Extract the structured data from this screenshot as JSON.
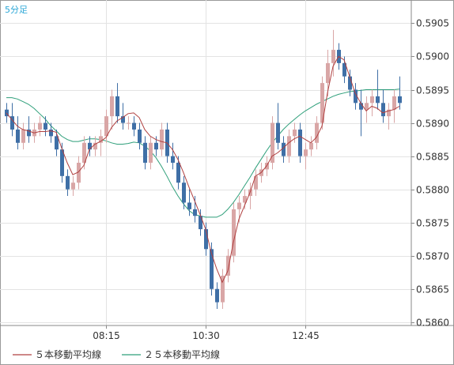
{
  "chart_data": {
    "type": "candlestick",
    "timeframe_label": "5分足",
    "x_tick_labels": [
      "08:15",
      "10:30",
      "12:45"
    ],
    "ylim": [
      0.58595,
      0.59085
    ],
    "y_ticks": [
      "0.5905",
      "0.5900",
      "0.5895",
      "0.5890",
      "0.5885",
      "0.5880",
      "0.5875",
      "0.5870",
      "0.5865",
      "0.5860"
    ],
    "grid": true,
    "legend_position": "bottom",
    "legend": [
      {
        "label": "５本移動平均線",
        "color": "#b04040"
      },
      {
        "label": "２５本移動平均線",
        "color": "#2e9f7a"
      }
    ],
    "up_color": "#d9a6a6",
    "down_color": "#3f6fa6",
    "candles": [
      [
        0.5892,
        0.5893,
        0.589,
        0.5891
      ],
      [
        0.5891,
        0.5893,
        0.5888,
        0.5889
      ],
      [
        0.5889,
        0.5891,
        0.5886,
        0.5887
      ],
      [
        0.5887,
        0.589,
        0.5886,
        0.5889
      ],
      [
        0.5889,
        0.5891,
        0.5887,
        0.5888
      ],
      [
        0.5888,
        0.589,
        0.5887,
        0.5889
      ],
      [
        0.5889,
        0.5891,
        0.5888,
        0.589
      ],
      [
        0.589,
        0.5891,
        0.5888,
        0.5889
      ],
      [
        0.5889,
        0.589,
        0.5887,
        0.5888
      ],
      [
        0.5888,
        0.5889,
        0.5885,
        0.5886
      ],
      [
        0.5886,
        0.5887,
        0.5881,
        0.5882
      ],
      [
        0.5882,
        0.5883,
        0.5879,
        0.588
      ],
      [
        0.588,
        0.5882,
        0.5879,
        0.5881
      ],
      [
        0.5881,
        0.5885,
        0.588,
        0.5884
      ],
      [
        0.5884,
        0.5888,
        0.5883,
        0.5887
      ],
      [
        0.5887,
        0.5888,
        0.5885,
        0.5886
      ],
      [
        0.5886,
        0.5888,
        0.5885,
        0.5887
      ],
      [
        0.5887,
        0.5889,
        0.5885,
        0.5888
      ],
      [
        0.5888,
        0.5892,
        0.5887,
        0.5891
      ],
      [
        0.5891,
        0.5895,
        0.5889,
        0.5894
      ],
      [
        0.5894,
        0.5896,
        0.589,
        0.5891
      ],
      [
        0.5891,
        0.5893,
        0.5889,
        0.589
      ],
      [
        0.589,
        0.5891,
        0.5889,
        0.589
      ],
      [
        0.589,
        0.5891,
        0.5888,
        0.5889
      ],
      [
        0.5889,
        0.589,
        0.5886,
        0.5887
      ],
      [
        0.5887,
        0.5888,
        0.5883,
        0.5884
      ],
      [
        0.5884,
        0.5888,
        0.5883,
        0.5887
      ],
      [
        0.5887,
        0.5888,
        0.5885,
        0.5886
      ],
      [
        0.5886,
        0.589,
        0.5885,
        0.5889
      ],
      [
        0.5889,
        0.589,
        0.5884,
        0.5885
      ],
      [
        0.5885,
        0.5887,
        0.5883,
        0.5884
      ],
      [
        0.5884,
        0.5885,
        0.588,
        0.5881
      ],
      [
        0.5881,
        0.5882,
        0.5877,
        0.5878
      ],
      [
        0.5878,
        0.588,
        0.5876,
        0.5877
      ],
      [
        0.5877,
        0.5879,
        0.5875,
        0.5876
      ],
      [
        0.5876,
        0.5877,
        0.5873,
        0.5874
      ],
      [
        0.5874,
        0.5875,
        0.587,
        0.5871
      ],
      [
        0.5871,
        0.5872,
        0.5864,
        0.5865
      ],
      [
        0.5865,
        0.5866,
        0.5862,
        0.5863
      ],
      [
        0.5863,
        0.5868,
        0.5862,
        0.5867
      ],
      [
        0.5867,
        0.5871,
        0.5866,
        0.587
      ],
      [
        0.587,
        0.5878,
        0.5869,
        0.5877
      ],
      [
        0.5877,
        0.5879,
        0.5875,
        0.5878
      ],
      [
        0.5878,
        0.588,
        0.5877,
        0.5879
      ],
      [
        0.5879,
        0.5881,
        0.5877,
        0.588
      ],
      [
        0.588,
        0.5883,
        0.5879,
        0.5882
      ],
      [
        0.5882,
        0.5884,
        0.5881,
        0.5883
      ],
      [
        0.5883,
        0.5885,
        0.5882,
        0.5884
      ],
      [
        0.5884,
        0.5891,
        0.5883,
        0.589
      ],
      [
        0.589,
        0.5893,
        0.5886,
        0.5887
      ],
      [
        0.5887,
        0.5888,
        0.5884,
        0.5885
      ],
      [
        0.5885,
        0.5889,
        0.5884,
        0.5888
      ],
      [
        0.5888,
        0.589,
        0.5887,
        0.5889
      ],
      [
        0.5889,
        0.589,
        0.5884,
        0.5885
      ],
      [
        0.5885,
        0.5887,
        0.5883,
        0.5886
      ],
      [
        0.5886,
        0.5888,
        0.5885,
        0.5887
      ],
      [
        0.5887,
        0.5891,
        0.5886,
        0.589
      ],
      [
        0.589,
        0.5897,
        0.5889,
        0.5896
      ],
      [
        0.5896,
        0.5901,
        0.5894,
        0.5899
      ],
      [
        0.5899,
        0.5904,
        0.5897,
        0.5901
      ],
      [
        0.5901,
        0.5902,
        0.5898,
        0.5899
      ],
      [
        0.5899,
        0.59,
        0.5896,
        0.5897
      ],
      [
        0.5897,
        0.5898,
        0.5894,
        0.5895
      ],
      [
        0.5895,
        0.5896,
        0.5892,
        0.5893
      ],
      [
        0.5893,
        0.5895,
        0.5888,
        0.5892
      ],
      [
        0.5892,
        0.5894,
        0.589,
        0.5893
      ],
      [
        0.5893,
        0.5895,
        0.5891,
        0.5894
      ],
      [
        0.5894,
        0.5898,
        0.5892,
        0.5893
      ],
      [
        0.5893,
        0.5895,
        0.589,
        0.5891
      ],
      [
        0.5891,
        0.5893,
        0.5889,
        0.5892
      ],
      [
        0.5892,
        0.5895,
        0.589,
        0.5894
      ],
      [
        0.5894,
        0.5897,
        0.5892,
        0.5893
      ]
    ],
    "ma5": [
      0.58915,
      0.58905,
      0.58895,
      0.5889,
      0.58888,
      0.58885,
      0.58887,
      0.58887,
      0.58888,
      0.58886,
      0.58862,
      0.5884,
      0.58822,
      0.58826,
      0.58836,
      0.5886,
      0.58868,
      0.58872,
      0.58878,
      0.58893,
      0.58903,
      0.58908,
      0.58914,
      0.58915,
      0.58908,
      0.5889,
      0.5888,
      0.58875,
      0.58872,
      0.5887,
      0.5886,
      0.58845,
      0.58825,
      0.58803,
      0.58783,
      0.58762,
      0.5874,
      0.58705,
      0.5868,
      0.5866,
      0.58677,
      0.5872,
      0.58755,
      0.58775,
      0.58795,
      0.5882,
      0.58825,
      0.58835,
      0.5885,
      0.58855,
      0.58862,
      0.5887,
      0.58876,
      0.5888,
      0.58875,
      0.5887,
      0.58878,
      0.58895,
      0.58945,
      0.58985,
      0.59,
      0.58995,
      0.5897,
      0.58945,
      0.5893,
      0.58918,
      0.58925,
      0.58922,
      0.58915,
      0.58918,
      0.5892,
      0.58925
    ],
    "ma25": [
      0.58938,
      0.58938,
      0.58936,
      0.58932,
      0.58928,
      0.58922,
      0.58914,
      0.58906,
      0.58896,
      0.58888,
      0.5888,
      0.58875,
      0.58872,
      0.58872,
      0.58874,
      0.58876,
      0.58876,
      0.58875,
      0.58873,
      0.5887,
      0.58868,
      0.58868,
      0.58869,
      0.58871,
      0.5887,
      0.58865,
      0.58858,
      0.58848,
      0.58835,
      0.5882,
      0.58804,
      0.5879,
      0.58778,
      0.58768,
      0.58762,
      0.5876,
      0.58758,
      0.58758,
      0.58758,
      0.58762,
      0.5877,
      0.5878,
      0.58792,
      0.58805,
      0.58818,
      0.58832,
      0.58845,
      0.58858,
      0.5887,
      0.5888,
      0.5889,
      0.58898,
      0.58905,
      0.58912,
      0.58918,
      0.58923,
      0.58928,
      0.58932,
      0.58936,
      0.5894,
      0.58943,
      0.58945,
      0.58947,
      0.58948,
      0.58949,
      0.5895,
      0.5895,
      0.5895,
      0.5895,
      0.5895,
      0.5895,
      0.58951
    ]
  }
}
